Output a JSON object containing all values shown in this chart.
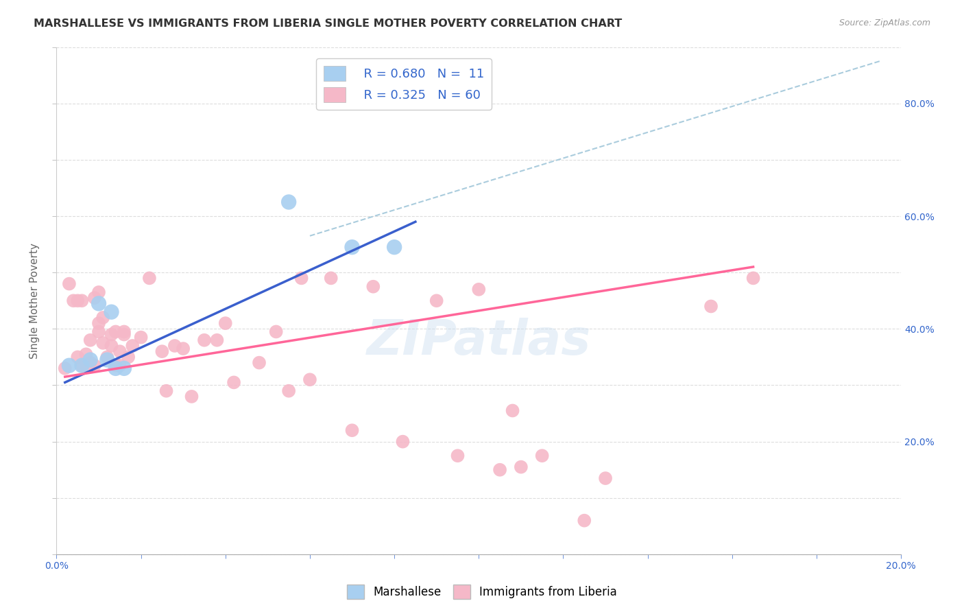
{
  "title": "MARSHALLESE VS IMMIGRANTS FROM LIBERIA SINGLE MOTHER POVERTY CORRELATION CHART",
  "source": "Source: ZipAtlas.com",
  "ylabel": "Single Mother Poverty",
  "xlim": [
    0.0,
    0.2
  ],
  "ylim": [
    0.0,
    0.9
  ],
  "blue_color": "#A8CFF0",
  "pink_color": "#F5B8C8",
  "blue_line_color": "#3A5FCD",
  "pink_line_color": "#FF6699",
  "dashed_line_color": "#AACCDD",
  "grid_color": "#DDDDDD",
  "watermark": "ZIPatlas",
  "legend_r_blue": "0.680",
  "legend_n_blue": "11",
  "legend_r_pink": "0.325",
  "legend_n_pink": "60",
  "blue_points_x": [
    0.003,
    0.006,
    0.008,
    0.01,
    0.012,
    0.013,
    0.014,
    0.016,
    0.055,
    0.07,
    0.08
  ],
  "blue_points_y": [
    0.335,
    0.335,
    0.345,
    0.445,
    0.345,
    0.43,
    0.33,
    0.33,
    0.625,
    0.545,
    0.545
  ],
  "pink_points_x": [
    0.002,
    0.003,
    0.004,
    0.005,
    0.005,
    0.006,
    0.006,
    0.007,
    0.007,
    0.008,
    0.008,
    0.009,
    0.009,
    0.01,
    0.01,
    0.01,
    0.011,
    0.011,
    0.012,
    0.013,
    0.013,
    0.014,
    0.014,
    0.015,
    0.015,
    0.016,
    0.016,
    0.017,
    0.018,
    0.02,
    0.022,
    0.025,
    0.026,
    0.028,
    0.03,
    0.032,
    0.035,
    0.038,
    0.04,
    0.042,
    0.048,
    0.052,
    0.055,
    0.058,
    0.06,
    0.065,
    0.07,
    0.075,
    0.082,
    0.09,
    0.095,
    0.1,
    0.105,
    0.108,
    0.11,
    0.115,
    0.125,
    0.13,
    0.155,
    0.165
  ],
  "pink_points_y": [
    0.33,
    0.48,
    0.45,
    0.35,
    0.45,
    0.335,
    0.45,
    0.335,
    0.355,
    0.34,
    0.38,
    0.335,
    0.455,
    0.395,
    0.41,
    0.465,
    0.375,
    0.42,
    0.35,
    0.37,
    0.39,
    0.335,
    0.395,
    0.36,
    0.335,
    0.39,
    0.395,
    0.35,
    0.37,
    0.385,
    0.49,
    0.36,
    0.29,
    0.37,
    0.365,
    0.28,
    0.38,
    0.38,
    0.41,
    0.305,
    0.34,
    0.395,
    0.29,
    0.49,
    0.31,
    0.49,
    0.22,
    0.475,
    0.2,
    0.45,
    0.175,
    0.47,
    0.15,
    0.255,
    0.155,
    0.175,
    0.06,
    0.135,
    0.44,
    0.49
  ],
  "blue_line_x": [
    0.002,
    0.085
  ],
  "blue_line_y": [
    0.305,
    0.59
  ],
  "pink_line_x": [
    0.002,
    0.165
  ],
  "pink_line_y": [
    0.315,
    0.51
  ],
  "dashed_line_x": [
    0.06,
    0.195
  ],
  "dashed_line_y": [
    0.565,
    0.875
  ]
}
